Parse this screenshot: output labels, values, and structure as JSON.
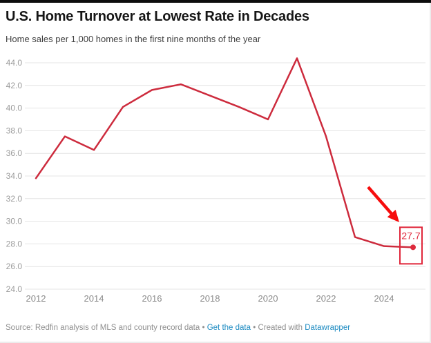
{
  "header": {
    "title": "U.S. Home Turnover at Lowest Rate in Decades",
    "subtitle": "Home sales per 1,000 homes in the first nine months of the year"
  },
  "chart_data": {
    "type": "line",
    "title": "U.S. Home Turnover at Lowest Rate in Decades",
    "subtitle": "Home sales per 1,000 homes in the first nine months of the year",
    "series_name": "Home sales per 1,000 homes",
    "x": [
      2012,
      2013,
      2014,
      2015,
      2016,
      2017,
      2018,
      2019,
      2020,
      2021,
      2022,
      2023,
      2024,
      2025
    ],
    "values": [
      33.8,
      37.5,
      36.3,
      40.1,
      41.6,
      42.1,
      41.1,
      40.1,
      39.0,
      44.4,
      37.5,
      28.6,
      27.8,
      27.7
    ],
    "ylim": [
      24,
      44
    ],
    "ytick_step": 2,
    "ytick_decimals": 1,
    "xticks": [
      2012,
      2014,
      2016,
      2018,
      2020,
      2022,
      2024
    ],
    "grid": "horizontal",
    "legend": "none",
    "line_color": "#cd2b3d",
    "grid_color": "#e4e4e4",
    "ytick_color": "#9b9b9b",
    "xtick_color": "#8a8a8a",
    "annotation": {
      "label": "27.7",
      "x": 2025,
      "y": 27.7,
      "box_color": "#e0263a",
      "dot_color": "#dd2a3c",
      "arrow_color": "#f60d0d"
    }
  },
  "footer": {
    "source_text": "Source: Redfin analysis of MLS and county record data",
    "separator": "•",
    "get_data_link": "Get the data",
    "created_text": "Created with",
    "datawrapper_link": "Datawrapper",
    "link_color": "#1d8bc2"
  }
}
